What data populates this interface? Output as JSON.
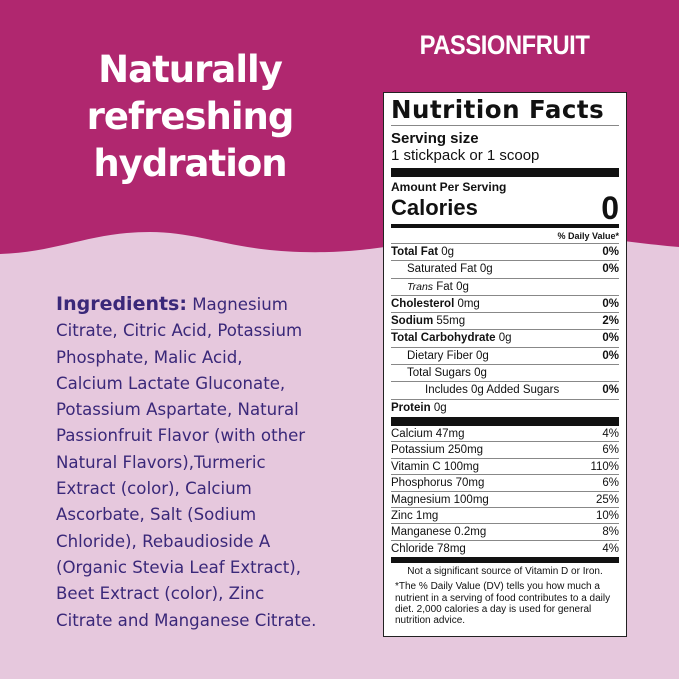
{
  "colors": {
    "top": "#b0276f",
    "bottom": "#e6c8dd",
    "ingredients_text": "#3a2879"
  },
  "headline": [
    "Naturally",
    "refreshing",
    "hydration"
  ],
  "flavor": "PASSIONFRUIT",
  "ingredients": {
    "label": "Ingredients:",
    "lines": [
      " Magnesium",
      "Citrate, Citric Acid, Potassium",
      "Phosphate, Malic Acid,",
      "Calcium Lactate Gluconate,",
      "Potassium Aspartate, Natural",
      "Passionfruit Flavor (with other",
      "Natural Flavors),Turmeric",
      "Extract (color), Calcium",
      "Ascorbate, Salt (Sodium",
      "Chloride),  Rebaudioside A",
      "(Organic Stevia Leaf Extract),",
      "Beet Extract (color), Zinc",
      "Citrate and Manganese Citrate."
    ]
  },
  "nutrition": {
    "title": "Nutrition Facts",
    "serving_size_label": "Serving size",
    "serving_size": "1 stickpack or 1 scoop",
    "amount_per_serving": "Amount Per Serving",
    "calories_label": "Calories",
    "calories": "0",
    "dv_header": "% Daily Value*",
    "rows": [
      {
        "name": "Total Fat",
        "amount": " 0g",
        "dv": "0%",
        "bold": true,
        "indent": 0
      },
      {
        "name": "Saturated Fat 0g",
        "amount": "",
        "dv": "0%",
        "bold": false,
        "indent": 1
      },
      {
        "name": "Trans",
        "amount": " Fat 0g",
        "dv": "",
        "bold": false,
        "indent": 1,
        "italic": true
      },
      {
        "name": "Cholesterol",
        "amount": " 0mg",
        "dv": "0%",
        "bold": true,
        "indent": 0
      },
      {
        "name": "Sodium",
        "amount": " 55mg",
        "dv": "2%",
        "bold": true,
        "indent": 0
      },
      {
        "name": "Total Carbohydrate",
        "amount": " 0g",
        "dv": "0%",
        "bold": true,
        "indent": 0
      },
      {
        "name": "Dietary Fiber 0g",
        "amount": "",
        "dv": "0%",
        "bold": false,
        "indent": 1
      },
      {
        "name": "Total Sugars 0g",
        "amount": "",
        "dv": "",
        "bold": false,
        "indent": 1
      },
      {
        "name": "Includes 0g Added Sugars",
        "amount": "",
        "dv": "0%",
        "bold": false,
        "indent": 2
      },
      {
        "name": "Protein",
        "amount": " 0g",
        "dv": "",
        "bold": true,
        "indent": 0
      }
    ],
    "vitamins": [
      {
        "name": "Calcium 47mg",
        "dv": "4%"
      },
      {
        "name": "Potassium 250mg",
        "dv": "6%"
      },
      {
        "name": "Vitamin C 100mg",
        "dv": "110%"
      },
      {
        "name": "Phosphorus 70mg",
        "dv": "6%"
      },
      {
        "name": "Magnesium 100mg",
        "dv": "25%"
      },
      {
        "name": "Zinc 1mg",
        "dv": "10%"
      },
      {
        "name": "Manganese 0.2mg",
        "dv": "8%"
      },
      {
        "name": "Chloride 78mg",
        "dv": "4%"
      }
    ],
    "footnote1": "Not a significant source of Vitamin D or Iron.",
    "footnote2": "*The % Daily Value (DV) tells you how much a nutrient in a serving of food contributes to a daily diet. 2,000 calories a day is used for general nutrition advice."
  }
}
